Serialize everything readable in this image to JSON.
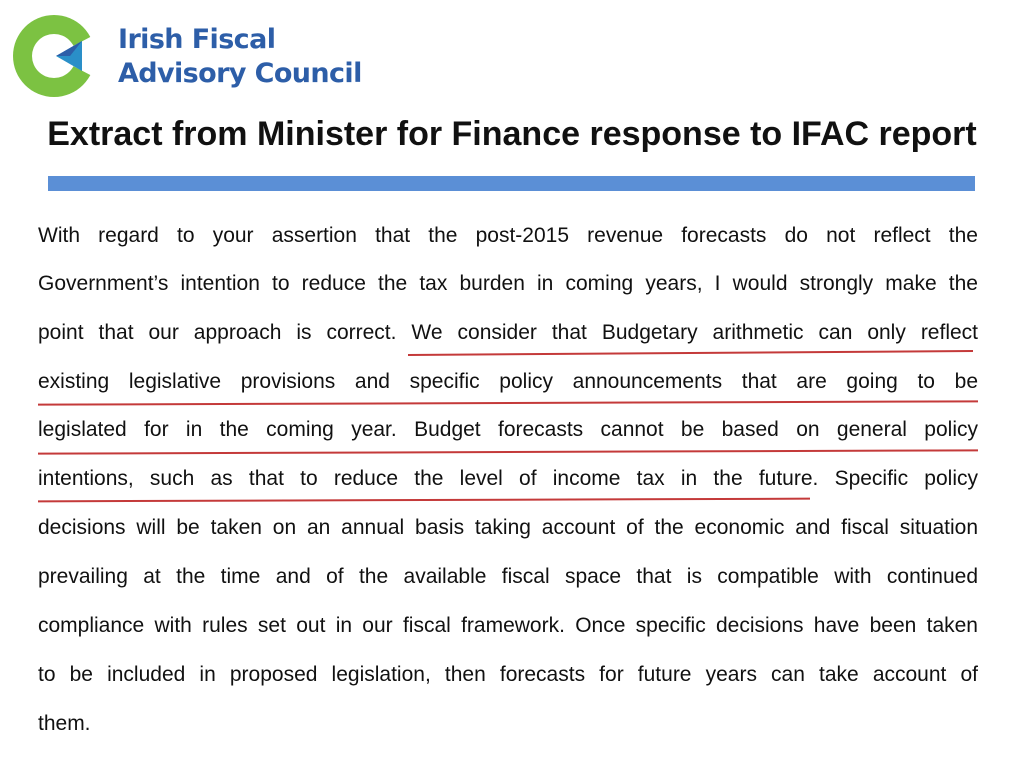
{
  "logo": {
    "line1": "Irish Fiscal",
    "line2": "Advisory Council",
    "colors": {
      "green": "#7cc242",
      "blue": "#2d5ea8",
      "teal": "#2a8fc8"
    }
  },
  "slide": {
    "title": "Extract from Minister for Finance response to IFAC report",
    "rule_color": "#5b8fd6"
  },
  "letter": {
    "lines": [
      "With regard to your assertion that the post-2015 revenue forecasts do not reflect the",
      "Government’s intention to reduce the tax burden in coming years, I would strongly make the",
      "point that our approach is correct.  We consider that Budgetary arithmetic can only reflect",
      "existing legislative provisions and specific policy announcements that are going to be",
      "legislated for in the coming year.  Budget forecasts cannot be based on general policy",
      "intentions, such as that to reduce the level of income tax in the future.  Specific policy",
      "decisions will be taken on an annual basis taking account of the economic and fiscal situation",
      "prevailing at the time and of the available fiscal space that is compatible with continued",
      "compliance with rules set out in our fiscal framework. Once specific decisions have been taken",
      "to be included in proposed legislation, then forecasts for future years can take account of",
      "them."
    ],
    "underline_color": "#c43a3a"
  }
}
